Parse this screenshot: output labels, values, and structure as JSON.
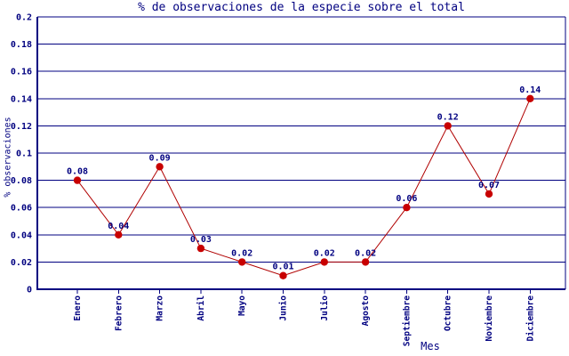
{
  "colors": {
    "axis": "#000080",
    "grid": "#000080",
    "text": "#000080",
    "line": "#b00000",
    "marker": "#c80000",
    "background": "#ffffff"
  },
  "chart_data": {
    "type": "line",
    "title": "% de observaciones de la especie sobre el total",
    "xlabel": "Mes",
    "ylabel": "% observaciones",
    "categories": [
      "Enero",
      "Febrero",
      "Marzo",
      "Abril",
      "Mayo",
      "Junio",
      "Julio",
      "Agosto",
      "Septiembre",
      "Octubre",
      "Noviembre",
      "Diciembre"
    ],
    "values": [
      0.08,
      0.04,
      0.09,
      0.03,
      0.02,
      0.01,
      0.02,
      0.02,
      0.06,
      0.12,
      0.07,
      0.14
    ],
    "point_labels": [
      "0.08",
      "0.04",
      "0.09",
      "0.03",
      "0.02",
      "0.01",
      "0.02",
      "0.02",
      "0.06",
      "0.12",
      "0.07",
      "0.14"
    ],
    "ylim": [
      0,
      0.2
    ],
    "ytick_step": 0.02,
    "ytick_labels": [
      "0",
      "0.02",
      "0.04",
      "0.06",
      "0.08",
      "0.1",
      "0.12",
      "0.14",
      "0.16",
      "0.18",
      "0.2"
    ],
    "grid": "on",
    "legend": "none",
    "marker": "filled-circle",
    "x_label_rotation": -90
  }
}
